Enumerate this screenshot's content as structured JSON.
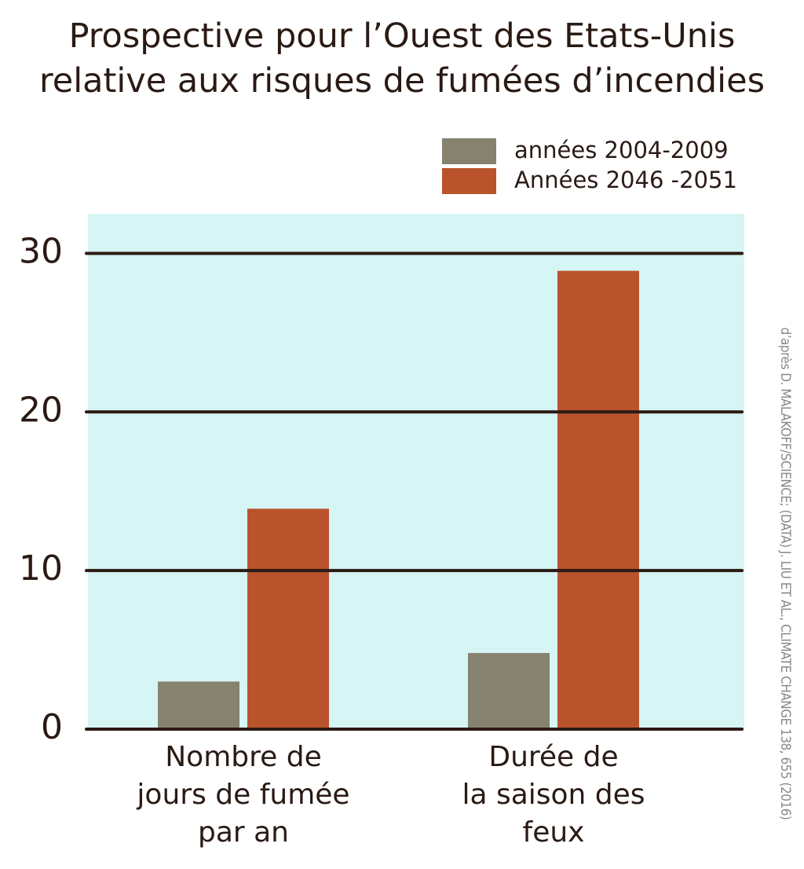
{
  "chart_data": {
    "type": "bar",
    "title": "Prospective pour l’Ouest des Etats-Unis\nrelative aux risques de fumées d’incendies",
    "categories": [
      "Nombre de\njours de fumée\npar an",
      "Durée de\nla saison des\nfeux"
    ],
    "series": [
      {
        "name": "années 2004-2009",
        "color": "#85836f",
        "values": [
          3,
          4.8
        ]
      },
      {
        "name": "Années 2046 -2051",
        "color": "#b9532b",
        "values": [
          13.9,
          28.9
        ]
      }
    ],
    "ylim": [
      0,
      32.5
    ],
    "yticks": [
      0,
      10,
      20,
      30
    ],
    "grid": true,
    "source": "d’après D. MALAKOFF/SCIENCE; (DATA) J. LIU ET AL., CLIMATE CHANGE 138, 655 (2016)"
  }
}
